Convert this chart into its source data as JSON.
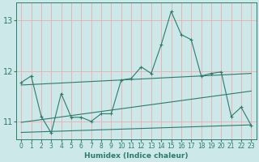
{
  "xlabel": "Humidex (Indice chaleur)",
  "ylabel": "",
  "background_color": "#cce8e8",
  "grid_color": "#e8b4b4",
  "line_color": "#2d7a6e",
  "xlim": [
    -0.5,
    23.5
  ],
  "ylim": [
    10.65,
    13.35
  ],
  "yticks": [
    11,
    12,
    13
  ],
  "xticks": [
    0,
    1,
    2,
    3,
    4,
    5,
    6,
    7,
    8,
    9,
    10,
    11,
    12,
    13,
    14,
    15,
    16,
    17,
    18,
    19,
    20,
    21,
    22,
    23
  ],
  "main_x": [
    0,
    1,
    2,
    3,
    4,
    5,
    6,
    7,
    8,
    9,
    10,
    11,
    12,
    13,
    14,
    15,
    16,
    17,
    18,
    19,
    20,
    21,
    22,
    23
  ],
  "main_y": [
    11.77,
    11.9,
    11.1,
    10.77,
    11.55,
    11.08,
    11.08,
    11.0,
    11.15,
    11.15,
    11.82,
    11.85,
    12.08,
    11.95,
    12.52,
    13.18,
    12.72,
    12.62,
    11.9,
    11.95,
    11.98,
    11.1,
    11.28,
    10.92
  ],
  "line1_x": [
    0,
    23
  ],
  "line1_y": [
    10.78,
    10.93
  ],
  "line2_x": [
    0,
    23
  ],
  "line2_y": [
    10.98,
    11.6
  ],
  "line3_x": [
    0,
    23
  ],
  "line3_y": [
    11.72,
    11.95
  ]
}
